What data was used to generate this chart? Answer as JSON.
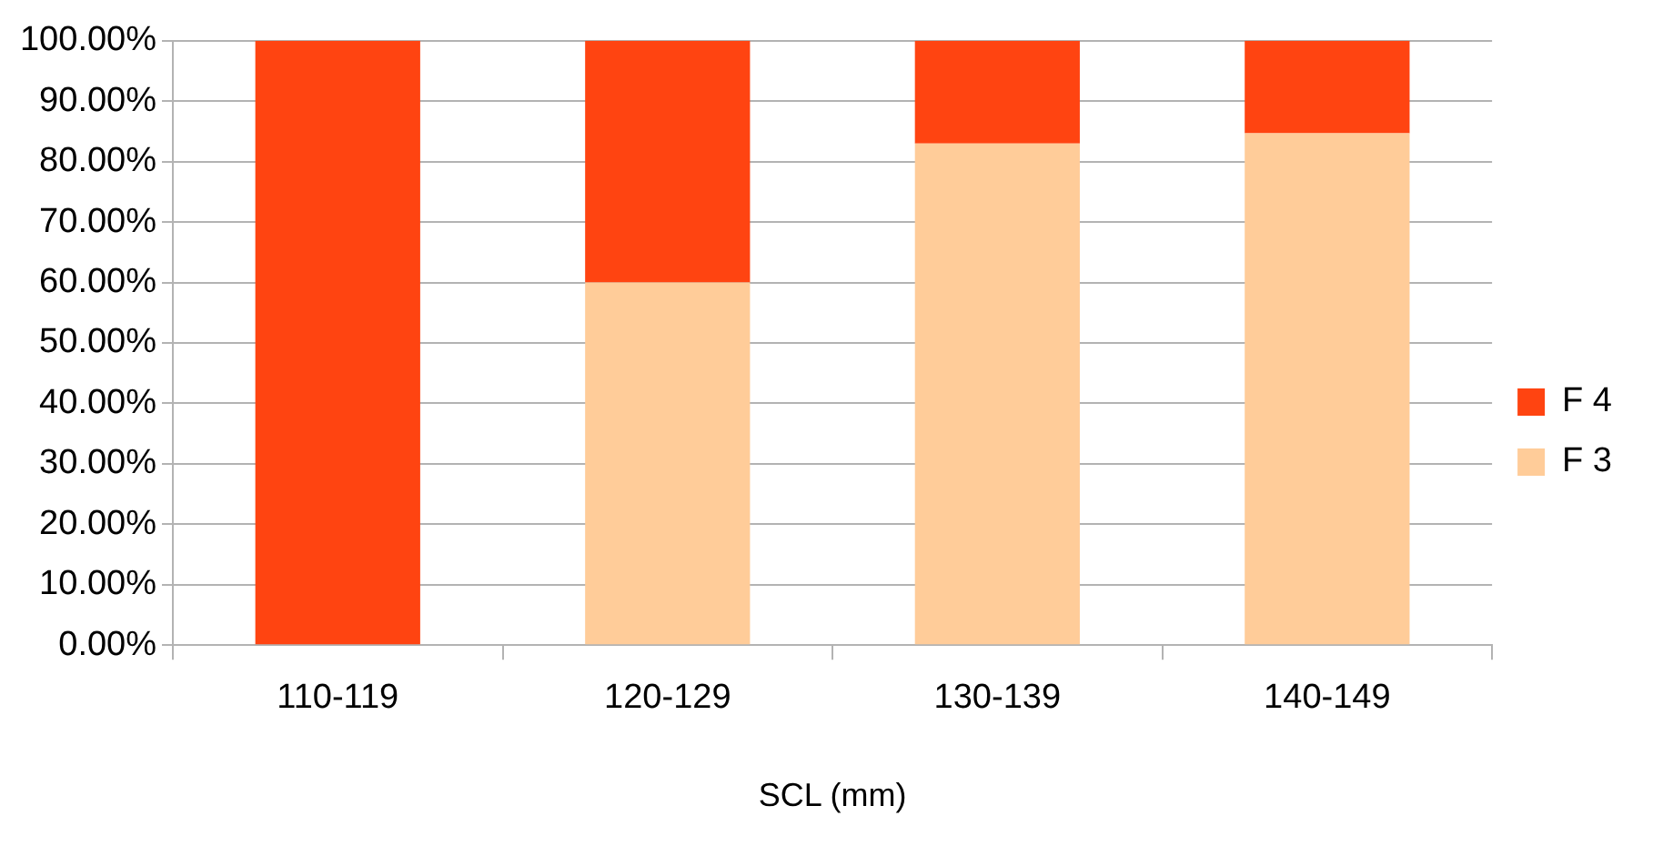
{
  "chart_data": {
    "type": "bar",
    "xlabel": "SCL (mm)",
    "categories": [
      "110-119",
      "120-129",
      "130-139",
      "140-149"
    ],
    "series": [
      {
        "name": "F 3",
        "color": "#ffcc99",
        "values": [
          0,
          60,
          83,
          84.7
        ]
      },
      {
        "name": "F 4",
        "color": "#ff4411",
        "values": [
          100,
          40,
          17,
          15.3
        ]
      }
    ],
    "stacked": true,
    "ylim": [
      0,
      100
    ],
    "yticks": [
      {
        "value": 0,
        "label": "0.00%"
      },
      {
        "value": 10,
        "label": "10.00%"
      },
      {
        "value": 20,
        "label": "20.00%"
      },
      {
        "value": 30,
        "label": "30.00%"
      },
      {
        "value": 40,
        "label": "40.00%"
      },
      {
        "value": 50,
        "label": "50.00%"
      },
      {
        "value": 60,
        "label": "60.00%"
      },
      {
        "value": 70,
        "label": "70.00%"
      },
      {
        "value": 80,
        "label": "80.00%"
      },
      {
        "value": 90,
        "label": "90.00%"
      },
      {
        "value": 100,
        "label": "100.00%"
      }
    ],
    "grid": "y",
    "legend": "right"
  }
}
